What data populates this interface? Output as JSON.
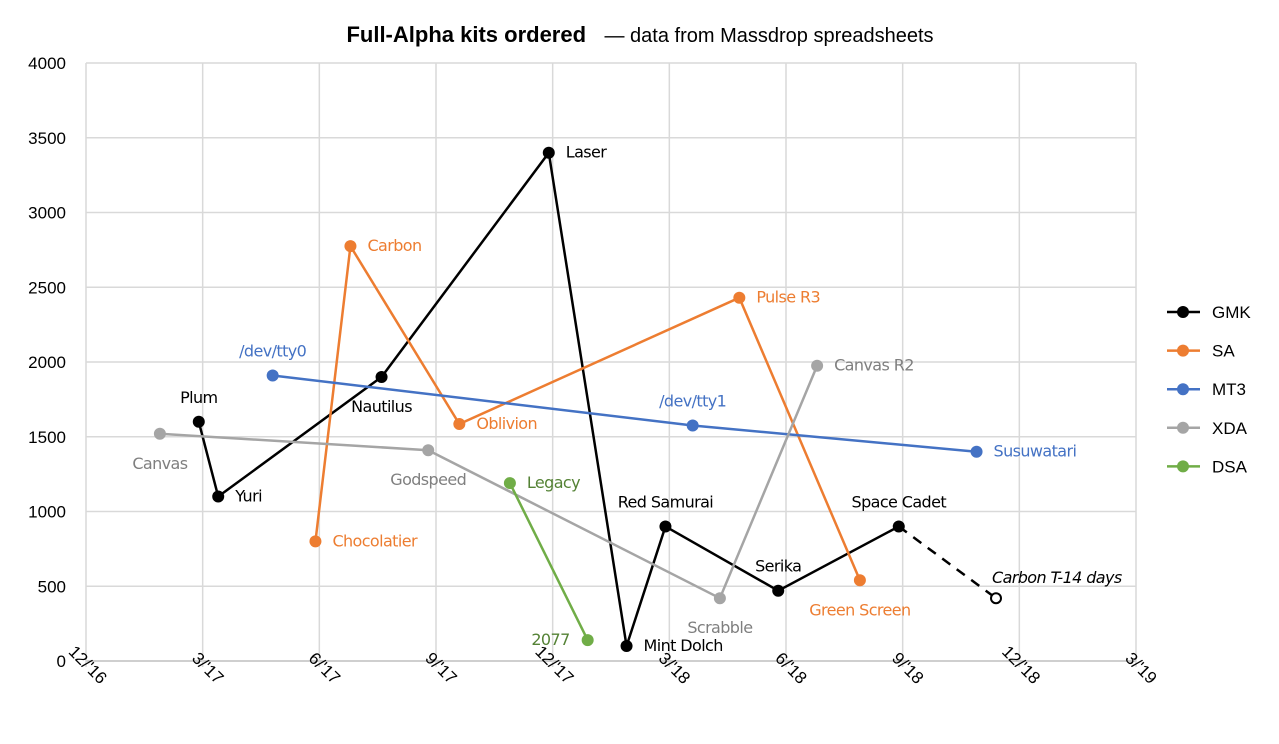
{
  "chart_data": {
    "type": "line",
    "title": "Full-Alpha kits ordered",
    "subtitle": "— data from Massdrop spreadsheets",
    "xlabel": "",
    "ylabel": "",
    "x_unit": "months since Dec 2016",
    "xlim": [
      0,
      27
    ],
    "ylim": [
      0,
      4000
    ],
    "yticks": [
      0,
      500,
      1000,
      1500,
      2000,
      2500,
      3000,
      3500,
      4000
    ],
    "xticks": [
      {
        "value": 0,
        "label": "12/'16"
      },
      {
        "value": 3,
        "label": "3/'17"
      },
      {
        "value": 6,
        "label": "6/'17"
      },
      {
        "value": 9,
        "label": "9/'17"
      },
      {
        "value": 12,
        "label": "12/'17"
      },
      {
        "value": 15,
        "label": "3/'18"
      },
      {
        "value": 18,
        "label": "6/'18"
      },
      {
        "value": 21,
        "label": "9/'18"
      },
      {
        "value": 24,
        "label": "12/'18"
      },
      {
        "value": 27,
        "label": "3/'19"
      }
    ],
    "grid": true,
    "legend": "right",
    "series": [
      {
        "name": "GMK",
        "color": "#000000",
        "points": [
          {
            "x": 2.9,
            "y": 1600,
            "label": "Plum",
            "pos": "above"
          },
          {
            "x": 3.4,
            "y": 1100,
            "label": "Yuri",
            "pos": "right"
          },
          {
            "x": 7.6,
            "y": 1900,
            "label": "Nautilus",
            "pos": "below"
          },
          {
            "x": 11.9,
            "y": 3400,
            "label": "Laser",
            "pos": "right"
          },
          {
            "x": 13.9,
            "y": 100,
            "label": "Mint Dolch",
            "pos": "right"
          },
          {
            "x": 14.9,
            "y": 900,
            "label": "Red Samurai",
            "pos": "above"
          },
          {
            "x": 17.8,
            "y": 470,
            "label": "Serika",
            "pos": "above"
          },
          {
            "x": 20.9,
            "y": 900,
            "label": "Space Cadet",
            "pos": "above"
          }
        ],
        "projection": {
          "x": 23.4,
          "y": 420,
          "label": "Carbon T-14 days",
          "pos": "above-right"
        }
      },
      {
        "name": "SA",
        "color": "#ED7D31",
        "points": [
          {
            "x": 5.9,
            "y": 800,
            "label": "Chocolatier",
            "pos": "right"
          },
          {
            "x": 6.8,
            "y": 2775,
            "label": "Carbon",
            "pos": "right"
          },
          {
            "x": 9.6,
            "y": 1585,
            "label": "Oblivion",
            "pos": "right"
          },
          {
            "x": 16.8,
            "y": 2430,
            "label": "Pulse R3",
            "pos": "right"
          },
          {
            "x": 19.9,
            "y": 540,
            "label": "Green Screen",
            "pos": "below"
          }
        ]
      },
      {
        "name": "MT3",
        "color": "#4472C4",
        "points": [
          {
            "x": 4.8,
            "y": 1910,
            "label": "/dev/tty0",
            "pos": "above"
          },
          {
            "x": 15.6,
            "y": 1575,
            "label": "/dev/tty1",
            "pos": "above"
          },
          {
            "x": 22.9,
            "y": 1400,
            "label": "Susuwatari",
            "pos": "right"
          }
        ]
      },
      {
        "name": "XDA",
        "color": "#A5A5A5",
        "points": [
          {
            "x": 1.9,
            "y": 1520,
            "label": "Canvas",
            "pos": "below"
          },
          {
            "x": 8.8,
            "y": 1410,
            "label": "Godspeed",
            "pos": "below"
          },
          {
            "x": 16.3,
            "y": 420,
            "label": "Scrabble",
            "pos": "below"
          },
          {
            "x": 18.8,
            "y": 1975,
            "label": "Canvas R2",
            "pos": "right"
          }
        ]
      },
      {
        "name": "DSA",
        "color": "#70AD47",
        "points": [
          {
            "x": 10.9,
            "y": 1190,
            "label": "Legacy",
            "pos": "right"
          },
          {
            "x": 12.9,
            "y": 140,
            "label": "2077",
            "pos": "left"
          }
        ]
      }
    ]
  }
}
